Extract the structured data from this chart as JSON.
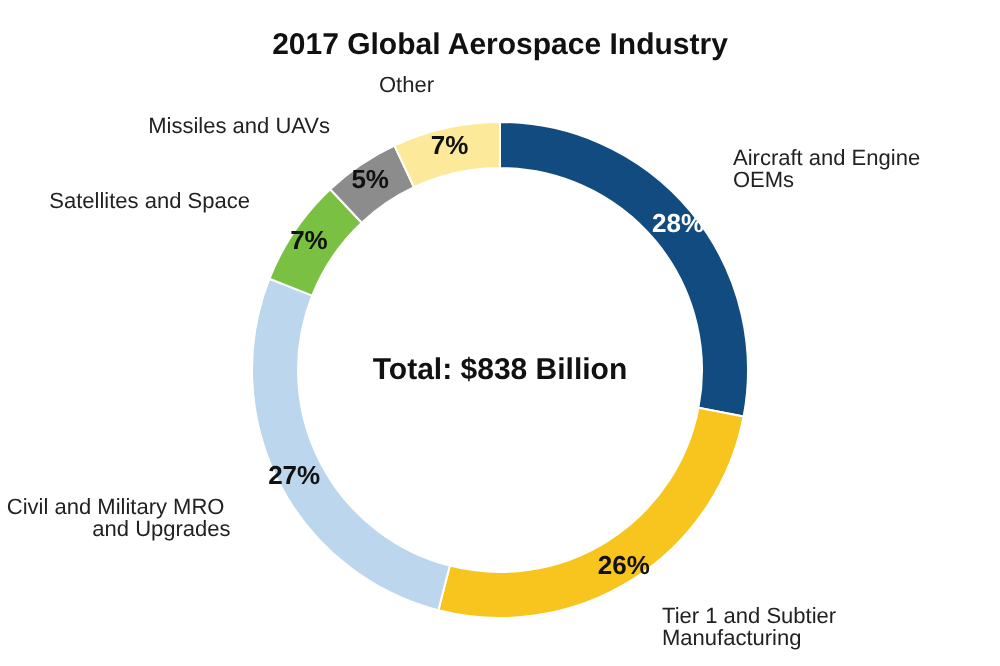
{
  "chart_data": {
    "type": "donut",
    "title": "2017 Global Aerospace Industry",
    "categories": [
      "Aircraft and Engine OEMs",
      "Tier 1 and Subtier Manufacturing",
      "Civil and Military MRO and Upgrades",
      "Satellites and Space",
      "Missiles and UAVs",
      "Other"
    ],
    "values": [
      28,
      26,
      27,
      7,
      5,
      7
    ],
    "colors": [
      "#124b80",
      "#f7c51e",
      "#bcd6ee",
      "#7ac143",
      "#8c8c8c",
      "#fde99a"
    ],
    "value_labels": [
      "28%",
      "26%",
      "27%",
      "7%",
      "5%",
      "7%"
    ],
    "legend": false,
    "annotations": [
      "Total: $838 Billion"
    ]
  }
}
